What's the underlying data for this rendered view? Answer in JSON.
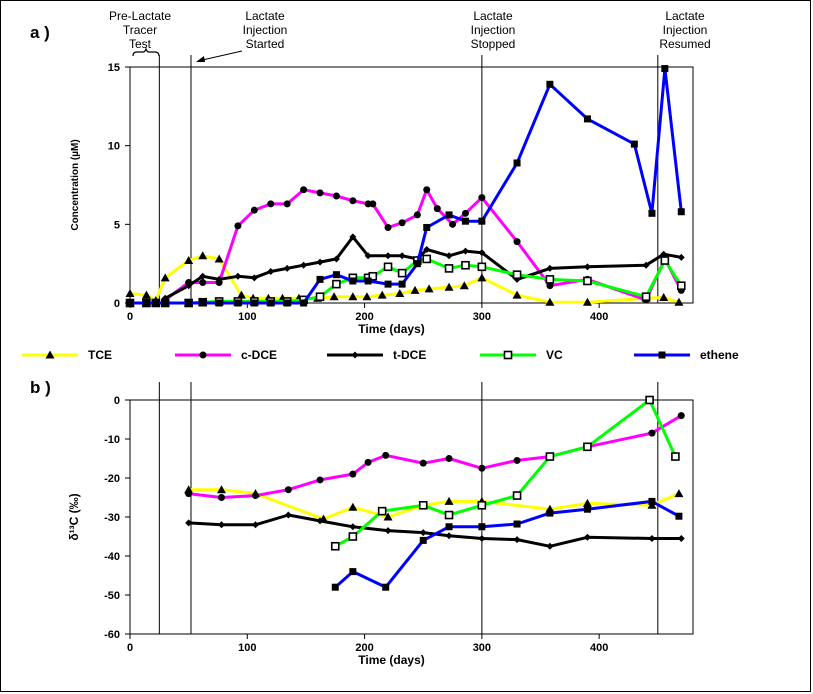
{
  "chart_data": [
    {
      "panel_label": "a )",
      "type": "line",
      "xlabel": "Time (days)",
      "ylabel": "Concentration (µM)",
      "xlim": [
        0,
        480
      ],
      "ylim": [
        0,
        15
      ],
      "xticks": [
        "0",
        "100",
        "200",
        "300",
        "400"
      ],
      "yticks": [
        "0",
        "5",
        "10",
        "15"
      ],
      "annotations": [
        {
          "lines": [
            "Pre-Lactate",
            "Tracer",
            "Test"
          ]
        },
        {
          "lines": [
            "Lactate",
            "Injection",
            "Started"
          ]
        },
        {
          "lines": [
            "Lactate",
            "Injection",
            "Stopped"
          ]
        },
        {
          "lines": [
            "Lactate",
            "Injection",
            "Resumed"
          ]
        }
      ],
      "event_days": [
        25,
        52,
        300,
        450
      ],
      "series": [
        {
          "name": "TCE",
          "color": "#ffff00",
          "marker": "triangle",
          "points": [
            [
              0,
              0.6
            ],
            [
              14,
              0.5
            ],
            [
              22,
              0.15
            ],
            [
              30,
              1.6
            ],
            [
              50,
              2.7
            ],
            [
              62,
              3.0
            ],
            [
              76,
              2.8
            ],
            [
              95,
              0.5
            ],
            [
              105,
              0.3
            ],
            [
              118,
              0.3
            ],
            [
              130,
              0.3
            ],
            [
              144,
              0.3
            ],
            [
              160,
              0.3
            ],
            [
              174,
              0.4
            ],
            [
              190,
              0.4
            ],
            [
              202,
              0.4
            ],
            [
              215,
              0.5
            ],
            [
              230,
              0.6
            ],
            [
              243,
              0.8
            ],
            [
              255,
              0.9
            ],
            [
              272,
              1.0
            ],
            [
              285,
              1.1
            ],
            [
              300,
              1.6
            ],
            [
              330,
              0.5
            ],
            [
              358,
              0.05
            ],
            [
              390,
              0.05
            ],
            [
              440,
              0.3
            ],
            [
              455,
              0.35
            ],
            [
              468,
              0.05
            ]
          ]
        },
        {
          "name": "c-DCE",
          "color": "#ff00ff",
          "marker": "circle",
          "points": [
            [
              30,
              0.2
            ],
            [
              50,
              1.3
            ],
            [
              62,
              1.3
            ],
            [
              76,
              1.3
            ],
            [
              92,
              4.9
            ],
            [
              106,
              5.9
            ],
            [
              120,
              6.3
            ],
            [
              134,
              6.3
            ],
            [
              148,
              7.2
            ],
            [
              162,
              7.0
            ],
            [
              176,
              6.8
            ],
            [
              190,
              6.5
            ],
            [
              203,
              6.3
            ],
            [
              207,
              6.3
            ],
            [
              220,
              4.8
            ],
            [
              232,
              5.1
            ],
            [
              245,
              5.6
            ],
            [
              253,
              7.2
            ],
            [
              262,
              6.0
            ],
            [
              275,
              5.0
            ],
            [
              286,
              5.7
            ],
            [
              300,
              6.7
            ],
            [
              330,
              3.9
            ],
            [
              358,
              1.1
            ],
            [
              390,
              1.5
            ],
            [
              440,
              0.2
            ],
            [
              456,
              2.8
            ],
            [
              470,
              0.8
            ]
          ]
        },
        {
          "name": "t-DCE",
          "color": "#000000",
          "marker": "diamond",
          "points": [
            [
              30,
              0.3
            ],
            [
              50,
              1.1
            ],
            [
              62,
              1.7
            ],
            [
              76,
              1.5
            ],
            [
              92,
              1.7
            ],
            [
              106,
              1.6
            ],
            [
              120,
              2.0
            ],
            [
              134,
              2.2
            ],
            [
              148,
              2.4
            ],
            [
              162,
              2.6
            ],
            [
              176,
              2.8
            ],
            [
              190,
              4.2
            ],
            [
              203,
              3.0
            ],
            [
              220,
              3.0
            ],
            [
              232,
              3.0
            ],
            [
              245,
              2.8
            ],
            [
              253,
              3.4
            ],
            [
              272,
              3.0
            ],
            [
              286,
              3.3
            ],
            [
              300,
              3.2
            ],
            [
              330,
              1.5
            ],
            [
              358,
              2.2
            ],
            [
              390,
              2.3
            ],
            [
              440,
              2.4
            ],
            [
              455,
              3.1
            ],
            [
              470,
              2.9
            ]
          ]
        },
        {
          "name": "VC",
          "color": "#00ff00",
          "marker": "square-open",
          "points": [
            [
              0,
              0
            ],
            [
              14,
              0
            ],
            [
              22,
              0
            ],
            [
              30,
              0
            ],
            [
              50,
              0
            ],
            [
              62,
              0.05
            ],
            [
              76,
              0.1
            ],
            [
              92,
              0.1
            ],
            [
              106,
              0.1
            ],
            [
              120,
              0.1
            ],
            [
              134,
              0.1
            ],
            [
              148,
              0.2
            ],
            [
              162,
              0.4
            ],
            [
              176,
              1.2
            ],
            [
              190,
              1.6
            ],
            [
              203,
              1.6
            ],
            [
              207,
              1.7
            ],
            [
              220,
              2.3
            ],
            [
              232,
              1.9
            ],
            [
              245,
              2.7
            ],
            [
              253,
              2.8
            ],
            [
              272,
              2.2
            ],
            [
              286,
              2.4
            ],
            [
              300,
              2.3
            ],
            [
              330,
              1.8
            ],
            [
              358,
              1.5
            ],
            [
              390,
              1.4
            ],
            [
              440,
              0.4
            ],
            [
              456,
              2.7
            ],
            [
              470,
              1.1
            ]
          ]
        },
        {
          "name": "ethene",
          "color": "#0000ff",
          "marker": "square",
          "points": [
            [
              0,
              0
            ],
            [
              14,
              0
            ],
            [
              22,
              0
            ],
            [
              30,
              0
            ],
            [
              50,
              0
            ],
            [
              62,
              0
            ],
            [
              76,
              0
            ],
            [
              92,
              0
            ],
            [
              106,
              0
            ],
            [
              120,
              0
            ],
            [
              134,
              0
            ],
            [
              148,
              0
            ],
            [
              162,
              1.5
            ],
            [
              176,
              1.8
            ],
            [
              190,
              1.4
            ],
            [
              203,
              1.4
            ],
            [
              220,
              1.2
            ],
            [
              232,
              1.2
            ],
            [
              245,
              2.5
            ],
            [
              253,
              4.8
            ],
            [
              272,
              5.6
            ],
            [
              286,
              5.2
            ],
            [
              300,
              5.2
            ],
            [
              330,
              8.9
            ],
            [
              358,
              13.9
            ],
            [
              390,
              11.7
            ],
            [
              430,
              10.1
            ],
            [
              445,
              5.7
            ],
            [
              456,
              14.9
            ],
            [
              470,
              5.8
            ]
          ]
        }
      ]
    },
    {
      "panel_label": "b )",
      "type": "line",
      "xlabel": "Time (days)",
      "ylabel": "δ¹³C (‰)",
      "xlim": [
        0,
        480
      ],
      "ylim": [
        -60,
        0
      ],
      "xticks": [
        "0",
        "100",
        "200",
        "300",
        "400"
      ],
      "yticks": [
        "0",
        "-10",
        "-20",
        "-30",
        "-40",
        "-50",
        "-60"
      ],
      "event_days": [
        25,
        52,
        300,
        450
      ],
      "series": [
        {
          "name": "TCE",
          "color": "#ffff00",
          "marker": "triangle",
          "points": [
            [
              50,
              -23
            ],
            [
              78,
              -23
            ],
            [
              107,
              -24
            ],
            [
              165,
              -30.5
            ],
            [
              190,
              -27.5
            ],
            [
              220,
              -30
            ],
            [
              250,
              -27
            ],
            [
              272,
              -26
            ],
            [
              300,
              -26
            ],
            [
              358,
              -28
            ],
            [
              390,
              -26.5
            ],
            [
              445,
              -27
            ],
            [
              468,
              -24
            ]
          ]
        },
        {
          "name": "c-DCE",
          "color": "#ff00ff",
          "marker": "circle",
          "points": [
            [
              50,
              -24
            ],
            [
              78,
              -25
            ],
            [
              107,
              -24.5
            ],
            [
              135,
              -23
            ],
            [
              162,
              -20.5
            ],
            [
              190,
              -19
            ],
            [
              203,
              -16
            ],
            [
              218,
              -14.2
            ],
            [
              250,
              -16.2
            ],
            [
              272,
              -15
            ],
            [
              300,
              -17.5
            ],
            [
              330,
              -15.5
            ],
            [
              358,
              -14.5
            ],
            [
              390,
              -12
            ],
            [
              445,
              -8.5
            ],
            [
              470,
              -4
            ]
          ]
        },
        {
          "name": "t-DCE",
          "color": "#000000",
          "marker": "diamond",
          "points": [
            [
              50,
              -31.5
            ],
            [
              78,
              -32
            ],
            [
              107,
              -32
            ],
            [
              135,
              -29.5
            ],
            [
              162,
              -31
            ],
            [
              190,
              -32.5
            ],
            [
              220,
              -33.5
            ],
            [
              250,
              -34
            ],
            [
              272,
              -34.8
            ],
            [
              300,
              -35.5
            ],
            [
              330,
              -35.8
            ],
            [
              358,
              -37.5
            ],
            [
              390,
              -35.2
            ],
            [
              445,
              -35.5
            ],
            [
              470,
              -35.5
            ]
          ]
        },
        {
          "name": "VC",
          "color": "#00ff00",
          "marker": "square-open",
          "points": [
            [
              175,
              -37.5
            ],
            [
              190,
              -35
            ],
            [
              215,
              -28.5
            ],
            [
              250,
              -27
            ],
            [
              272,
              -29.5
            ],
            [
              300,
              -27
            ],
            [
              330,
              -24.5
            ],
            [
              358,
              -14.5
            ],
            [
              390,
              -12
            ],
            [
              443,
              0
            ],
            [
              465,
              -14.5
            ]
          ]
        },
        {
          "name": "ethene",
          "color": "#0000ff",
          "marker": "square",
          "points": [
            [
              175,
              -48
            ],
            [
              190,
              -44
            ],
            [
              218,
              -48
            ],
            [
              250,
              -36
            ],
            [
              272,
              -32.5
            ],
            [
              300,
              -32.5
            ],
            [
              330,
              -31.8
            ],
            [
              358,
              -29
            ],
            [
              390,
              -28
            ],
            [
              445,
              -26
            ],
            [
              468,
              -29.8
            ]
          ]
        }
      ]
    }
  ]
}
